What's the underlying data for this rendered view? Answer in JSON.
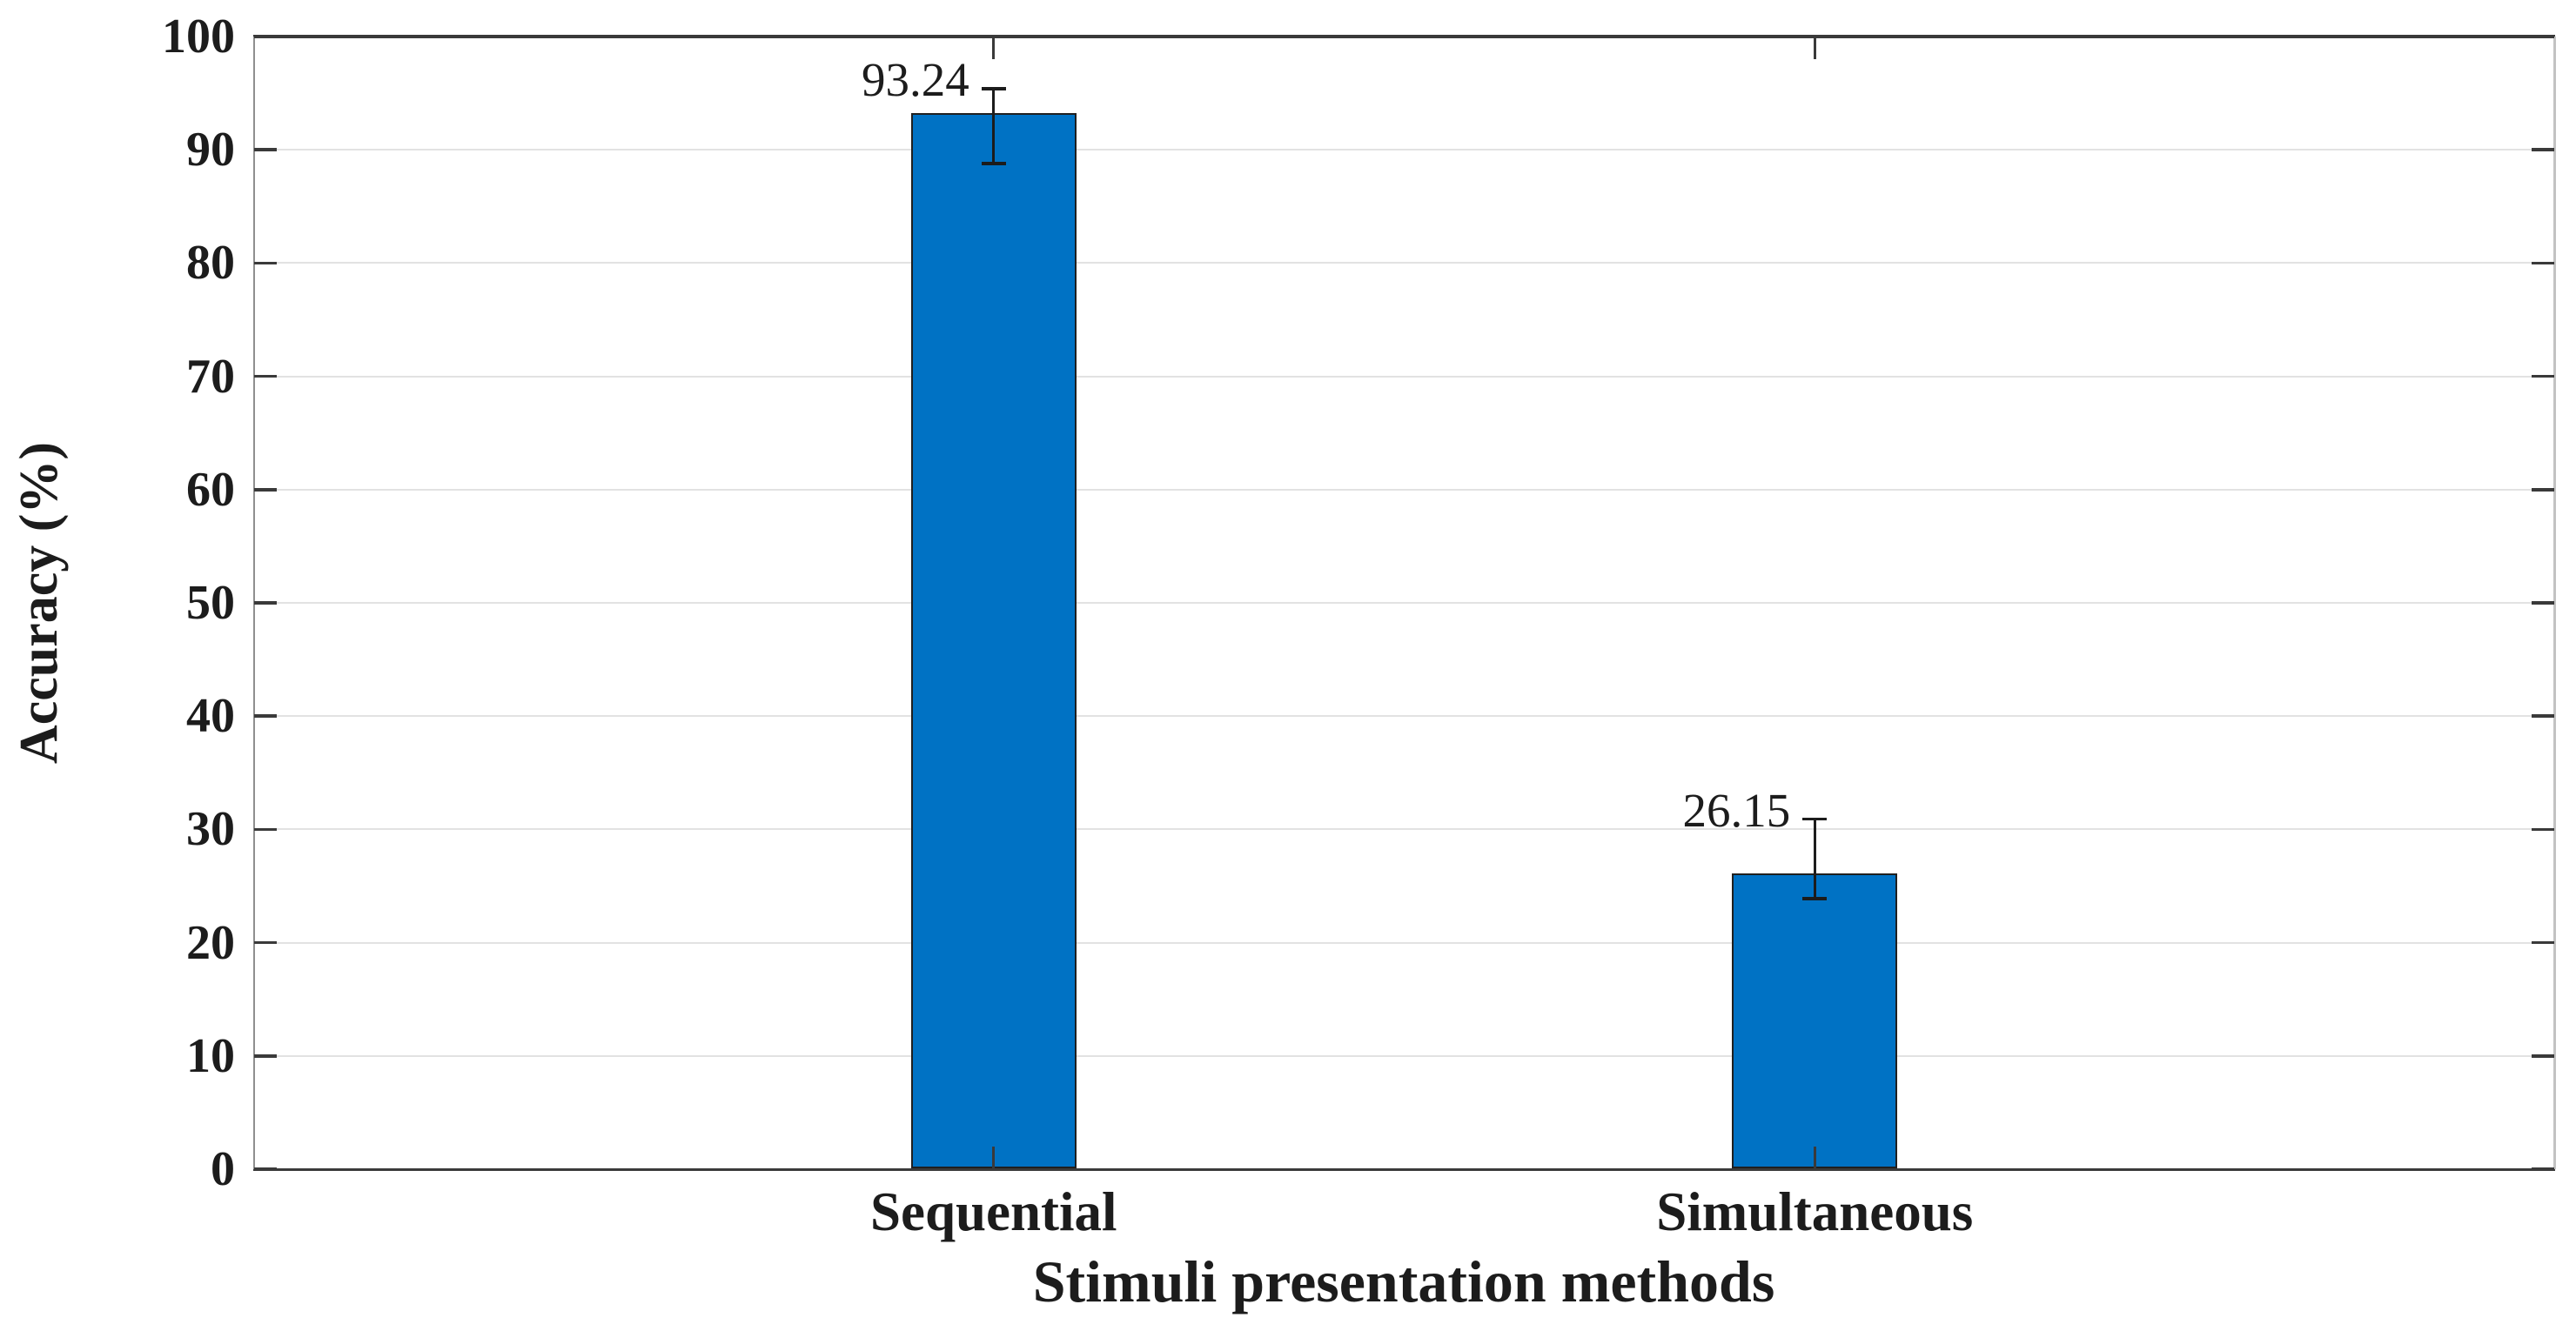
{
  "chart_data": {
    "type": "bar",
    "title": "",
    "categories": [
      "Sequential",
      "Simultaneous"
    ],
    "values": [
      93.24,
      26.15
    ],
    "value_labels": [
      "93.24",
      "26.15"
    ],
    "error_bar_top": [
      95.4,
      30.9
    ],
    "error_bar_bottom": [
      88.8,
      23.9
    ],
    "xlabel": "Stimuli presentation methods",
    "ylabel": "Accuracy (%)",
    "ylim": [
      0,
      100
    ],
    "ytick_step": 10,
    "ytick_labels": [
      "0",
      "10",
      "20",
      "30",
      "40",
      "50",
      "60",
      "70",
      "80",
      "90",
      "100"
    ],
    "grid": true,
    "legend_position": "none",
    "colors": {
      "bar_fill": "#0072C4",
      "bar_edge": "#1f1f1f",
      "error_bar": "#1c1c1c",
      "gridline": "#e2e2e2",
      "axis_dark": "#3a3a3a",
      "spine_left": "#8f8f8f",
      "spine_right": "#c2c2c2",
      "text": "#1c1c1c",
      "background": "#ffffff"
    }
  }
}
